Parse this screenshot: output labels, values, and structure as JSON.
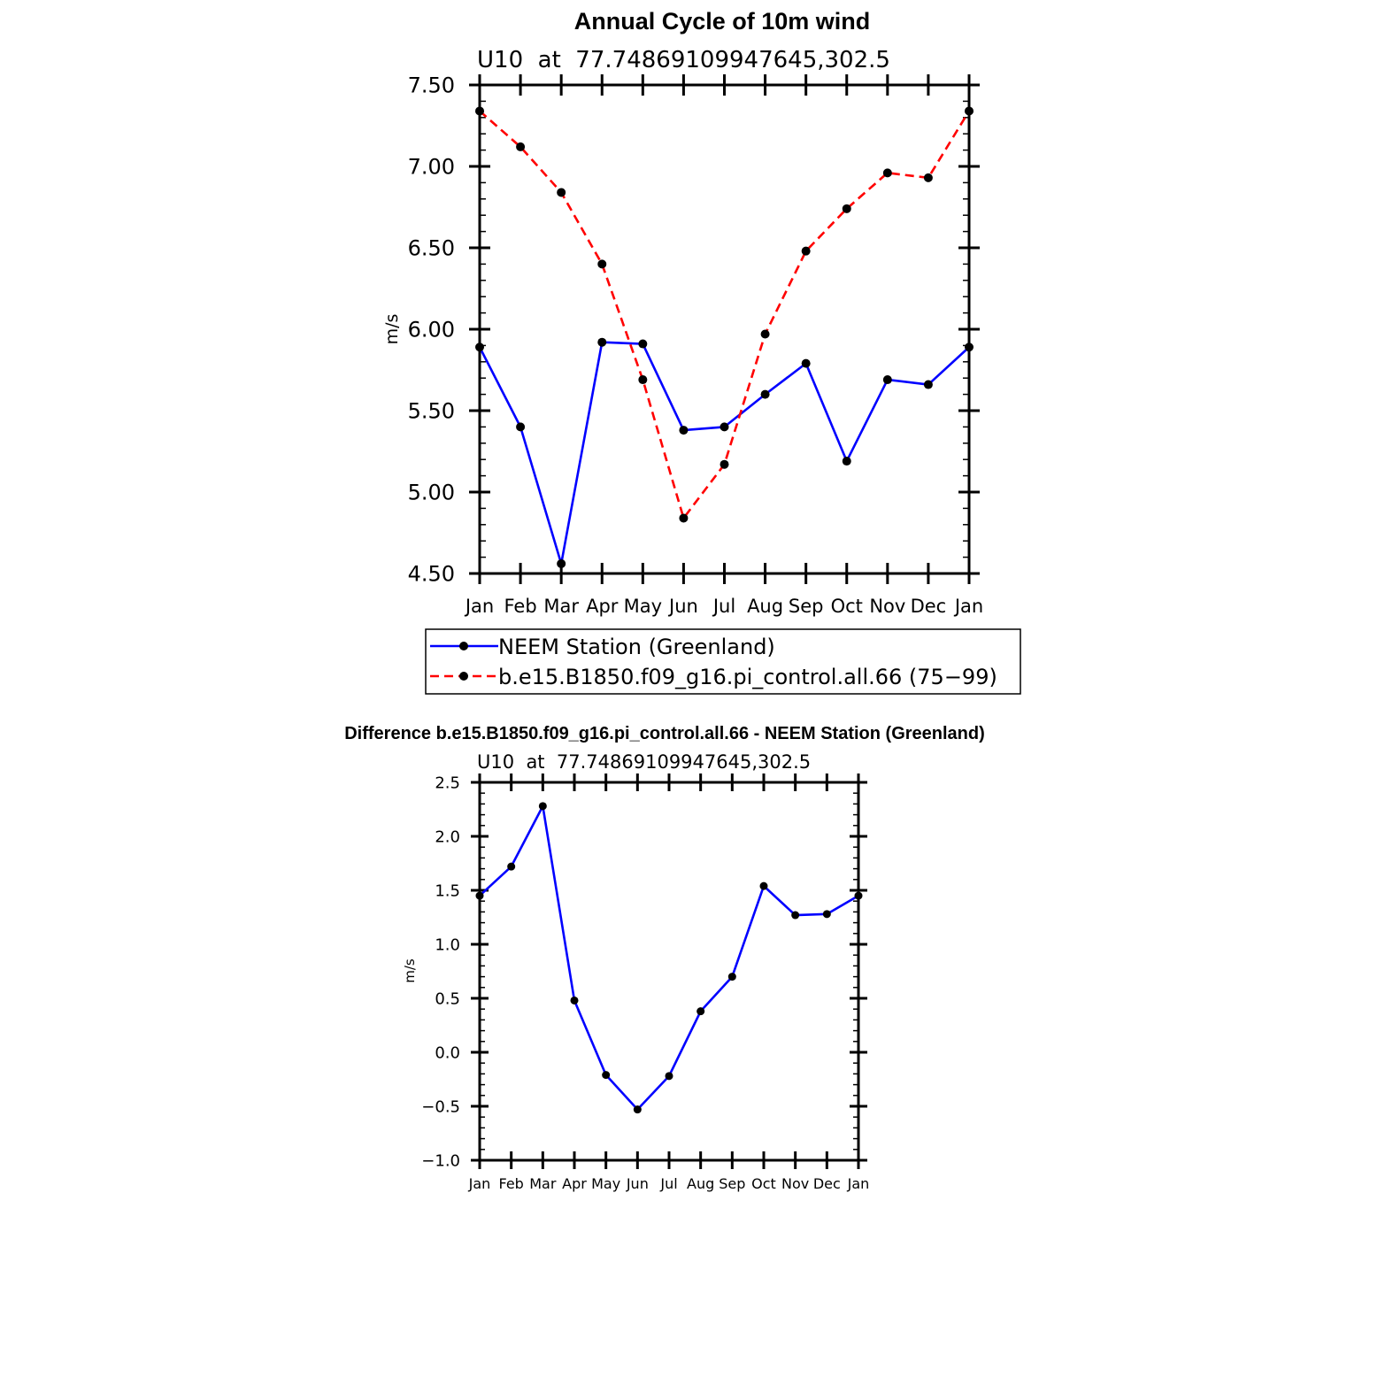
{
  "chart_data": [
    {
      "type": "line",
      "title": "Annual Cycle of 10m wind",
      "subtitle": "U10  at  77.74869109947645,302.5",
      "xlabel": "",
      "ylabel": "m/s",
      "categories": [
        "Jan",
        "Feb",
        "Mar",
        "Apr",
        "May",
        "Jun",
        "Jul",
        "Aug",
        "Sep",
        "Oct",
        "Nov",
        "Dec",
        "Jan"
      ],
      "ylim": [
        4.5,
        7.5
      ],
      "ytick_labels": [
        "4.50",
        "5.00",
        "5.50",
        "6.00",
        "6.50",
        "7.00",
        "7.50"
      ],
      "ytick_values": [
        4.5,
        5.0,
        5.5,
        6.0,
        6.5,
        7.0,
        7.5
      ],
      "legend_position": "bottom",
      "series": [
        {
          "name": "NEEM Station (Greenland)",
          "color": "#0000ff",
          "style": "solid",
          "values": [
            5.89,
            5.4,
            4.56,
            5.92,
            5.91,
            5.38,
            5.4,
            5.6,
            5.79,
            5.19,
            5.69,
            5.66,
            5.89
          ]
        },
        {
          "name": "b.e15.B1850.f09_g16.pi_control.all.66 (75−99)",
          "color": "#ff0000",
          "style": "dashed",
          "values": [
            7.34,
            7.12,
            6.84,
            6.4,
            5.69,
            4.84,
            5.17,
            5.97,
            6.48,
            6.74,
            6.96,
            6.93,
            7.34
          ]
        }
      ]
    },
    {
      "type": "line",
      "title": "Difference b.e15.B1850.f09_g16.pi_control.all.66 - NEEM Station (Greenland)",
      "subtitle": "U10  at  77.74869109947645,302.5",
      "xlabel": "",
      "ylabel": "m/s",
      "categories": [
        "Jan",
        "Feb",
        "Mar",
        "Apr",
        "May",
        "Jun",
        "Jul",
        "Aug",
        "Sep",
        "Oct",
        "Nov",
        "Dec",
        "Jan"
      ],
      "ylim": [
        -1.0,
        2.5
      ],
      "ytick_labels": [
        "−1.0",
        "−0.5",
        "0.0",
        "0.5",
        "1.0",
        "1.5",
        "2.0",
        "2.5"
      ],
      "ytick_values": [
        -1.0,
        -0.5,
        0.0,
        0.5,
        1.0,
        1.5,
        2.0,
        2.5
      ],
      "series": [
        {
          "name": "Difference",
          "color": "#0000ff",
          "style": "solid",
          "values": [
            1.45,
            1.72,
            2.28,
            0.48,
            -0.21,
            -0.53,
            -0.22,
            0.38,
            0.7,
            1.54,
            1.27,
            1.28,
            1.45
          ]
        }
      ]
    }
  ]
}
